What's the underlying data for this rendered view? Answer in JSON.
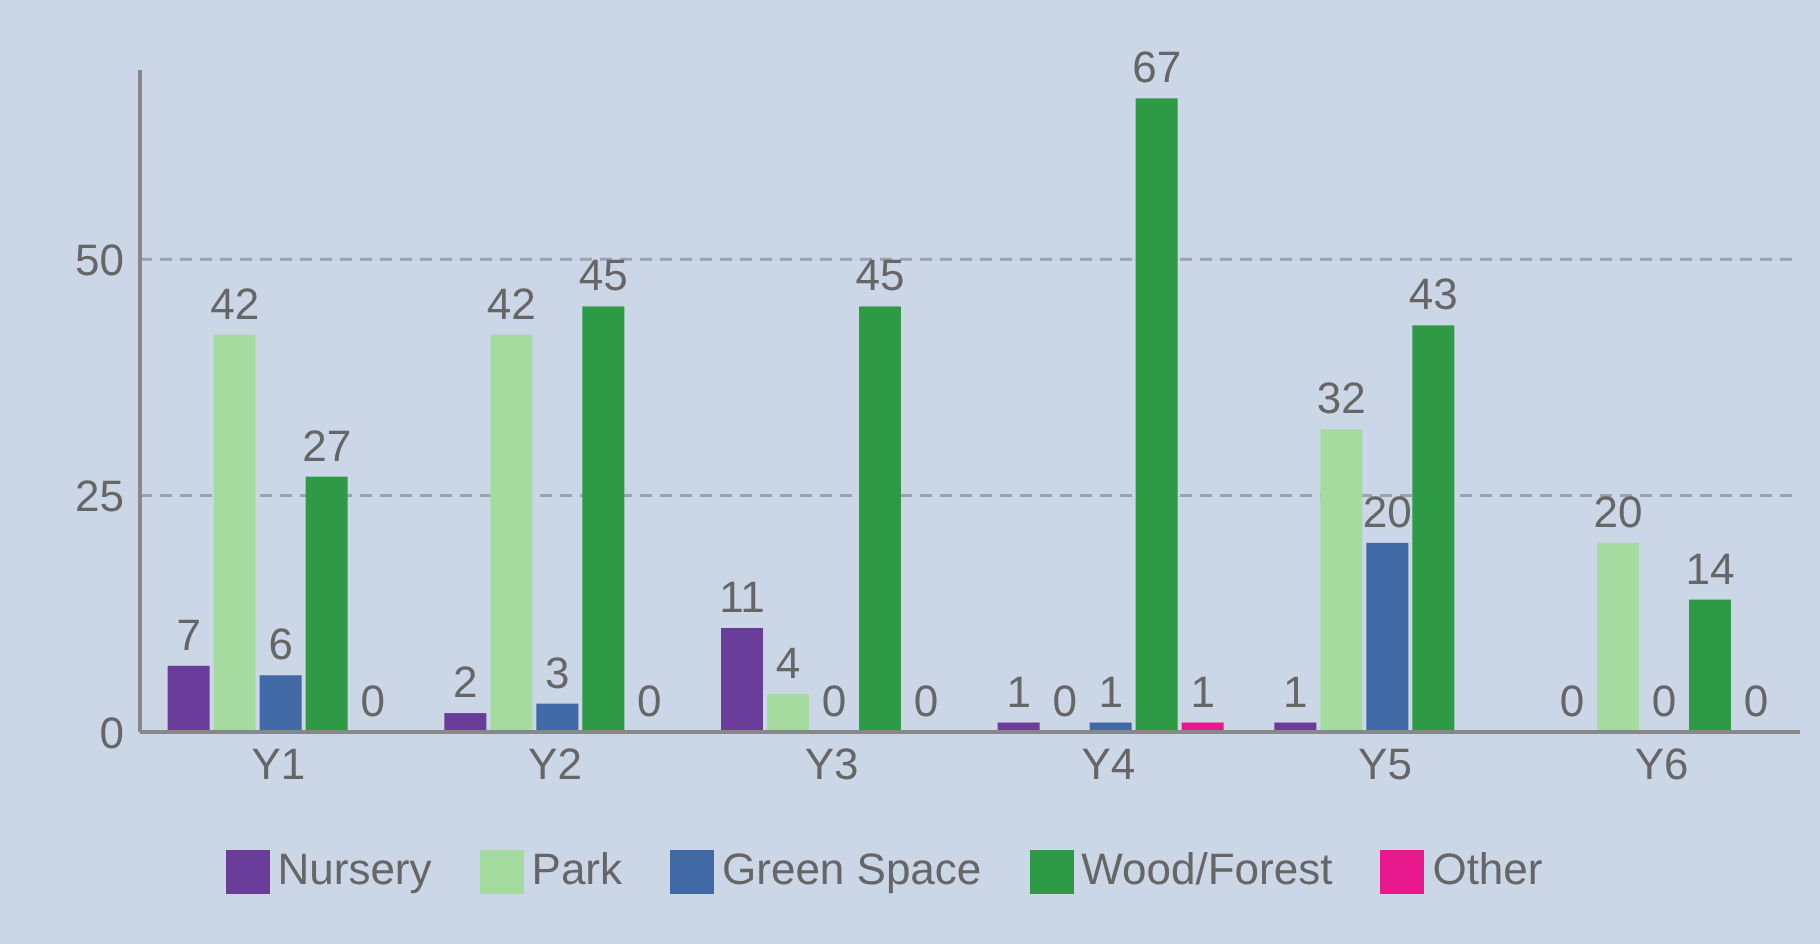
{
  "chart_data": {
    "type": "bar",
    "categories": [
      "Y1",
      "Y2",
      "Y3",
      "Y4",
      "Y5",
      "Y6"
    ],
    "series": [
      {
        "name": "Nursery",
        "color": "#6a3d9a",
        "values": [
          7,
          2,
          11,
          1,
          1,
          0
        ]
      },
      {
        "name": "Park",
        "color": "#a6dba0",
        "values": [
          42,
          42,
          4,
          0,
          32,
          20
        ]
      },
      {
        "name": "Green Space",
        "color": "#4169a5",
        "values": [
          6,
          3,
          0,
          1,
          20,
          0
        ]
      },
      {
        "name": "Wood/Forest",
        "color": "#2e9a45",
        "values": [
          27,
          45,
          45,
          67,
          43,
          14
        ]
      },
      {
        "name": "Other",
        "color": "#e7198c",
        "values": [
          0,
          0,
          0,
          1,
          null,
          0
        ]
      }
    ],
    "ylim": [
      0,
      70
    ],
    "yticks": [
      0,
      25,
      50
    ],
    "grid": "y",
    "legend": "bottom",
    "data_labels": true
  }
}
